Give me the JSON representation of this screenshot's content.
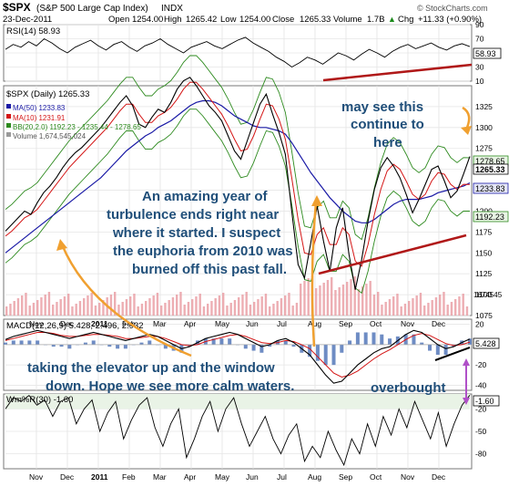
{
  "header": {
    "symbol": "$SPX",
    "name": "(S&P 500 Large Cap Index)",
    "exchange": "INDX",
    "date": "23-Dec-2011",
    "source": "© StockCharts.com",
    "quote": [
      {
        "label": "Open",
        "value": "1254.00"
      },
      {
        "label": "High",
        "value": "1265.42"
      },
      {
        "label": "Low",
        "value": "1254.00"
      },
      {
        "label": "Close",
        "value": "1265.33"
      },
      {
        "label": "Volume",
        "value": "1.7B"
      },
      {
        "label": "Chg",
        "value": "+11.33 (+0.90%)"
      }
    ],
    "change_arrow": "▲"
  },
  "colors": {
    "price": "#000000",
    "ma50": "#1a1aa6",
    "ma10": "#d41515",
    "bb": "#2d8a1e",
    "volume": "#e89aa0",
    "trend": "#b01818",
    "note": "#1f4e79",
    "arrow": "#f0a030",
    "purple": "#b050c8"
  },
  "chart_data": [
    {
      "type": "line",
      "title": "RSI(14) 58.93",
      "ylim": [
        10,
        90
      ],
      "yticks": [
        "90",
        "70",
        "50",
        "30",
        "10"
      ],
      "last_label": "58.93",
      "series": [
        {
          "name": "RSI(14)",
          "values": [
            55,
            62,
            58,
            66,
            60,
            70,
            64,
            56,
            50,
            58,
            63,
            68,
            60,
            54,
            62,
            66,
            58,
            52,
            60,
            64,
            70,
            62,
            56,
            50,
            58,
            62,
            66,
            60,
            56,
            62,
            68,
            72,
            64,
            58,
            52,
            44,
            38,
            30,
            36,
            44,
            40,
            34,
            42,
            50,
            46,
            40,
            48,
            55,
            50,
            44,
            52,
            58,
            62,
            56,
            60,
            64,
            58,
            54,
            60,
            63,
            58.93
          ]
        }
      ]
    },
    {
      "type": "line",
      "title": "$SPX (Daily) 1265.33",
      "legend": [
        "MA(50) 1233.83",
        "MA(10) 1231.91",
        "BB(20,2.0) 1192.23 - 1235.44 - 1278.65",
        "Volume 1,674,545,024"
      ],
      "ylim": [
        1075,
        1350
      ],
      "yticks": [
        "1325",
        "1300",
        "1275",
        "1250",
        "1225",
        "1200",
        "1175",
        "1150",
        "1125",
        "1100",
        "1075"
      ],
      "last_labels": [
        "1278.65",
        "1265.33",
        "1233.83",
        "1192.23",
        "1674545"
      ],
      "x_labels": [
        "Nov",
        "Dec",
        "2011",
        "Feb",
        "Mar",
        "Apr",
        "May",
        "Jun",
        "Jul",
        "Aug",
        "Sep",
        "Oct",
        "Nov",
        "Dec"
      ],
      "series": [
        {
          "name": "$SPX",
          "values": [
            1176,
            1184,
            1192,
            1200,
            1196,
            1210,
            1222,
            1230,
            1240,
            1252,
            1262,
            1270,
            1276,
            1284,
            1292,
            1300,
            1310,
            1320,
            1330,
            1338,
            1326,
            1304,
            1300,
            1312,
            1322,
            1318,
            1330,
            1346,
            1356,
            1360,
            1350,
            1338,
            1326,
            1318,
            1308,
            1290,
            1272,
            1262,
            1284,
            1306,
            1328,
            1340,
            1316,
            1294,
            1268,
            1200,
            1136,
            1120,
            1162,
            1206,
            1164,
            1128,
            1180,
            1204,
            1148,
            1106,
            1142,
            1188,
            1226,
            1252,
            1264,
            1254,
            1240,
            1220,
            1198,
            1214,
            1232,
            1250,
            1254,
            1236,
            1216,
            1224,
            1244,
            1265.33
          ]
        },
        {
          "name": "MA(50)",
          "values": [
            1150,
            1156,
            1162,
            1168,
            1174,
            1180,
            1186,
            1192,
            1198,
            1204,
            1210,
            1216,
            1222,
            1228,
            1234,
            1240,
            1248,
            1256,
            1264,
            1272,
            1278,
            1284,
            1290,
            1294,
            1300,
            1304,
            1308,
            1314,
            1320,
            1326,
            1330,
            1332,
            1332,
            1330,
            1326,
            1320,
            1314,
            1310,
            1306,
            1302,
            1300,
            1300,
            1298,
            1296,
            1292,
            1282,
            1270,
            1258,
            1246,
            1236,
            1226,
            1216,
            1208,
            1200,
            1194,
            1188,
            1186,
            1186,
            1190,
            1196,
            1202,
            1208,
            1212,
            1214,
            1214,
            1214,
            1216,
            1218,
            1222,
            1224,
            1226,
            1228,
            1230,
            1233.83
          ]
        },
        {
          "name": "MA(10)",
          "values": [
            1170,
            1176,
            1184,
            1192,
            1196,
            1202,
            1212,
            1222,
            1232,
            1242,
            1252,
            1260,
            1268,
            1276,
            1284,
            1292,
            1300,
            1310,
            1320,
            1328,
            1328,
            1316,
            1306,
            1306,
            1314,
            1318,
            1324,
            1334,
            1346,
            1354,
            1354,
            1346,
            1336,
            1326,
            1316,
            1302,
            1286,
            1272,
            1274,
            1290,
            1310,
            1328,
            1326,
            1310,
            1286,
            1240,
            1190,
            1150,
            1148,
            1172,
            1180,
            1160,
            1160,
            1180,
            1172,
            1140,
            1134,
            1160,
            1196,
            1226,
            1248,
            1256,
            1250,
            1236,
            1220,
            1214,
            1220,
            1236,
            1246,
            1244,
            1232,
            1226,
            1232,
            1231.91
          ]
        }
      ]
    },
    {
      "type": "line",
      "title": "MACD(12,26,9) 5.428, 2.496, 2.932",
      "yticks": [
        "20",
        "0",
        "-20",
        "-40"
      ],
      "last_label": "5.428",
      "series": [
        {
          "name": "MACD(12,26,9)",
          "values": [
            5,
            8,
            10,
            12,
            14,
            12,
            10,
            8,
            6,
            8,
            10,
            12,
            10,
            8,
            6,
            4,
            6,
            8,
            10,
            8,
            4,
            0,
            -4,
            -2,
            2,
            6,
            8,
            10,
            12,
            10,
            6,
            2,
            -2,
            0,
            4,
            6,
            2,
            -4,
            -10,
            -20,
            -30,
            -38,
            -36,
            -28,
            -20,
            -14,
            -8,
            -4,
            -2,
            4,
            10,
            14,
            12,
            6,
            0,
            -4,
            -2,
            2,
            5.428
          ]
        },
        {
          "name": "Signal",
          "values": [
            4,
            6,
            8,
            10,
            12,
            12,
            11,
            9,
            8,
            8,
            9,
            10,
            10,
            9,
            8,
            6,
            6,
            7,
            8,
            8,
            6,
            3,
            0,
            -1,
            0,
            3,
            5,
            7,
            9,
            10,
            8,
            5,
            2,
            1,
            2,
            4,
            3,
            0,
            -4,
            -12,
            -20,
            -28,
            -32,
            -30,
            -26,
            -20,
            -14,
            -9,
            -5,
            0,
            5,
            9,
            11,
            9,
            5,
            1,
            -1,
            0,
            2.496
          ]
        }
      ]
    },
    {
      "type": "line",
      "title": "Wm%R(30) -1.60",
      "ylim": [
        -100,
        0
      ],
      "yticks": [
        "-20",
        "-50",
        "-80"
      ],
      "last_label": "-1.60",
      "x_labels": [
        "Nov",
        "Dec",
        "2011",
        "Feb",
        "Mar",
        "Apr",
        "May",
        "Jun",
        "Jul",
        "Aug",
        "Sep",
        "Oct",
        "Nov",
        "Dec"
      ],
      "series": [
        {
          "name": "Wm%R(30)",
          "values": [
            -20,
            -5,
            -10,
            -2,
            -15,
            -8,
            -30,
            -10,
            -5,
            -40,
            -20,
            -8,
            -50,
            -25,
            -10,
            -60,
            -35,
            -15,
            -5,
            -45,
            -70,
            -40,
            -20,
            -85,
            -60,
            -30,
            -10,
            -50,
            -20,
            -5,
            -40,
            -70,
            -50,
            -30,
            -60,
            -80,
            -55,
            -40,
            -90,
            -70,
            -85,
            -50,
            -75,
            -95,
            -60,
            -80,
            -40,
            -70,
            -30,
            -55,
            -20,
            -45,
            -10,
            -35,
            -60,
            -25,
            -70,
            -40,
            -15,
            -1.6
          ]
        }
      ]
    }
  ],
  "annotations": {
    "top_right": [
      "may see this",
      "continue to",
      "here"
    ],
    "middle": [
      "An amazing year of",
      "turbulence ends right near",
      "where it started.  I suspect",
      "the euphoria from 2010 was",
      "burned off this past fall."
    ],
    "bottom": [
      "taking the elevator up and the window",
      "down.  Hope we see more calm waters."
    ],
    "overbought": "overbought"
  }
}
